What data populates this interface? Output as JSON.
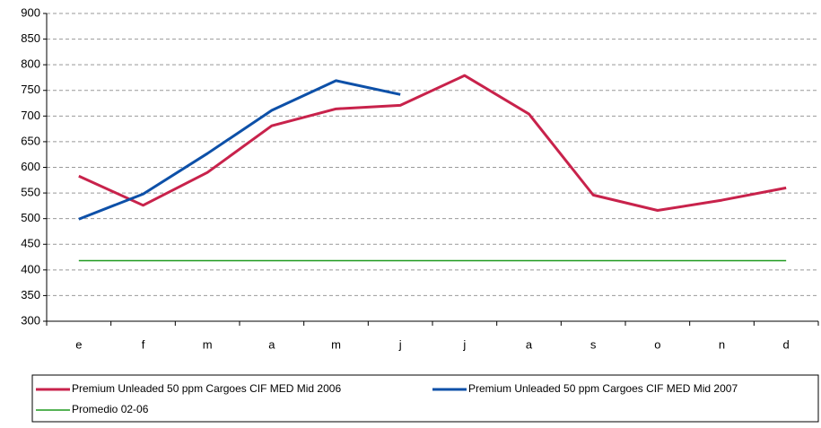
{
  "chart_data": {
    "type": "line",
    "categories": [
      "e",
      "f",
      "m",
      "a",
      "m",
      "j",
      "j",
      "a",
      "s",
      "o",
      "n",
      "d"
    ],
    "series": [
      {
        "name": "Premium Unleaded 50 ppm Cargoes CIF MED Mid 2006",
        "color": "#c8224b",
        "values": [
          583,
          526,
          590,
          681,
          714,
          721,
          779,
          704,
          546,
          516,
          536,
          560
        ]
      },
      {
        "name": "Premium Unleaded 50 ppm Cargoes CIF MED Mid 2007",
        "color": "#0d50a8",
        "values": [
          499,
          548,
          627,
          711,
          769,
          742,
          null,
          null,
          null,
          null,
          null,
          null
        ]
      },
      {
        "name": "Promedio 02-06",
        "color": "#1f9a1f",
        "values": [
          418,
          418,
          418,
          418,
          418,
          418,
          418,
          418,
          418,
          418,
          418,
          418
        ]
      }
    ],
    "ylim": [
      300,
      900
    ],
    "yticks": [
      300,
      350,
      400,
      450,
      500,
      550,
      600,
      650,
      700,
      750,
      800,
      850,
      900
    ],
    "grid": true
  }
}
